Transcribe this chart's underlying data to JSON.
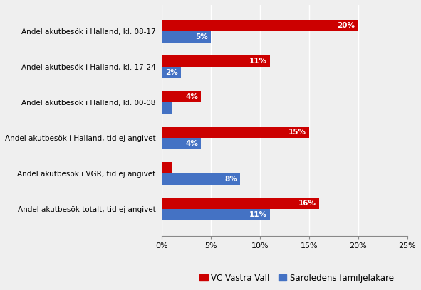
{
  "categories": [
    "Andel akutbesök i Halland, kl. 08-17",
    "Andel akutbesök i Halland, kl. 17-24",
    "Andel akutbesök i Halland, kl. 00-08",
    "Andel akutbesök i Halland, tid ej angivet",
    "Andel akutbesök i VGR, tid ej angivet",
    "Andel akutbesök totalt, tid ej angivet"
  ],
  "vc_values": [
    20,
    11,
    4,
    15,
    1,
    16
  ],
  "saro_values": [
    5,
    2,
    1,
    4,
    8,
    11
  ],
  "vc_color": "#CC0000",
  "saro_color": "#4472C4",
  "vc_label": "VC Västra Vall",
  "saro_label": "Säröledens familjeläkare",
  "xlim": [
    0,
    25
  ],
  "xticks": [
    0,
    5,
    10,
    15,
    20,
    25
  ],
  "xticklabels": [
    "0%",
    "5%",
    "10%",
    "15%",
    "20%",
    "25%"
  ],
  "background_color": "#EFEFEF",
  "bar_height": 0.32,
  "label_fontsize": 7.5,
  "tick_fontsize": 8,
  "legend_fontsize": 8.5,
  "grid_color": "#FFFFFF"
}
